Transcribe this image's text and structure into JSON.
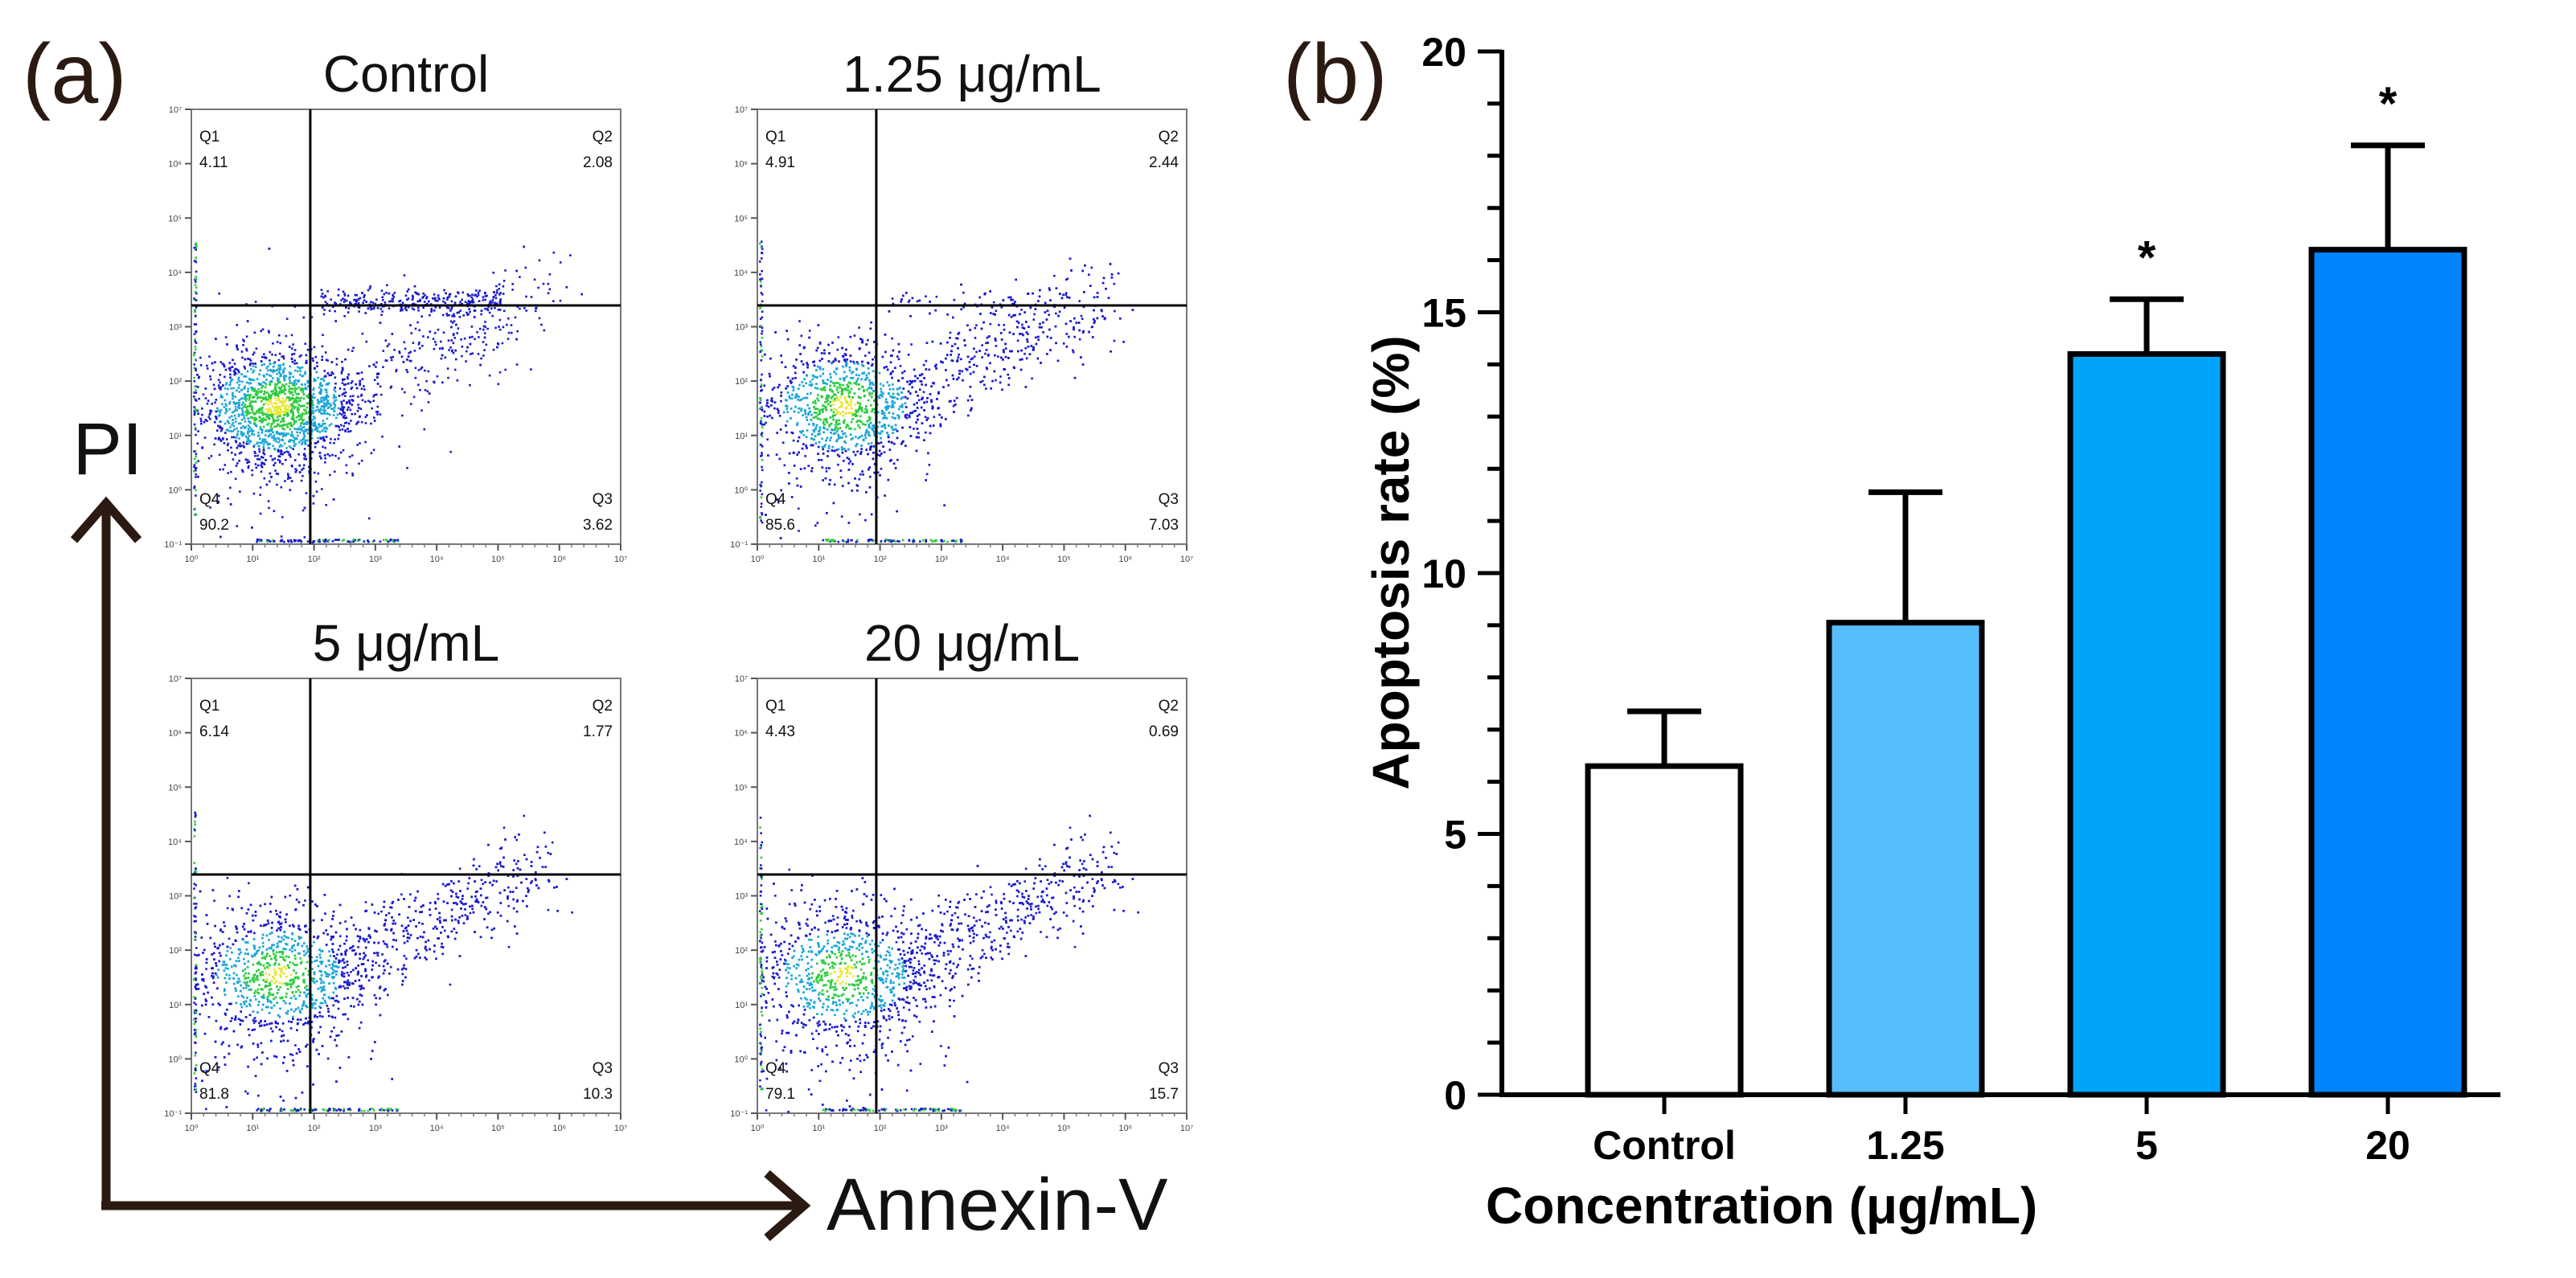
{
  "panel_a": {
    "label": "(a)",
    "y_axis_label": "PI",
    "x_axis_label": "Annexin-V",
    "quadrant_names": [
      "Q1",
      "Q2",
      "Q3",
      "Q4"
    ],
    "x_tick_labels": [
      "10⁰",
      "10¹",
      "10²",
      "10³",
      "10⁴",
      "10⁵",
      "10⁶",
      "10⁷"
    ],
    "y_tick_labels": [
      "10⁻¹",
      "10⁰",
      "10¹",
      "10²",
      "10³",
      "10⁴",
      "10⁵",
      "10⁶",
      "10⁷"
    ],
    "plots": [
      {
        "title": "Control",
        "q1": "4.11",
        "q2": "2.08",
        "q3": "3.62",
        "q4": "90.2"
      },
      {
        "title": "1.25 μg/mL",
        "q1": "4.91",
        "q2": "2.44",
        "q3": "7.03",
        "q4": "85.6"
      },
      {
        "title": "5 μg/mL",
        "q1": "6.14",
        "q2": "1.77",
        "q3": "10.3",
        "q4": "81.8"
      },
      {
        "title": "20 μg/mL",
        "q1": "4.43",
        "q2": "0.69",
        "q3": "15.7",
        "q4": "79.1"
      }
    ]
  },
  "colors": {
    "dot_low": "#1a1acc",
    "dot_mid": "#1aa6d9",
    "dot_high": "#2ecc40",
    "dot_peak": "#e8e62a",
    "arrow": "#2b1a12",
    "bar_edge": "#000000"
  },
  "chart_data": {
    "type": "bar",
    "panel_label": "(b)",
    "categories": [
      "Control",
      "1.25",
      "5",
      "20"
    ],
    "values": [
      6.3,
      9.05,
      14.2,
      16.2
    ],
    "errors": [
      1.05,
      2.5,
      1.05,
      2.0
    ],
    "significance": [
      "",
      "",
      "*",
      "*"
    ],
    "bar_colors": [
      "#ffffff",
      "#56bdfb",
      "#00a4fb",
      "#0084fb"
    ],
    "xlabel": "Concentration (μg/mL)",
    "ylabel": "Apoptosis rate (%)",
    "ylim": [
      0,
      20
    ],
    "yticks": [
      0,
      5,
      10,
      15,
      20
    ]
  }
}
